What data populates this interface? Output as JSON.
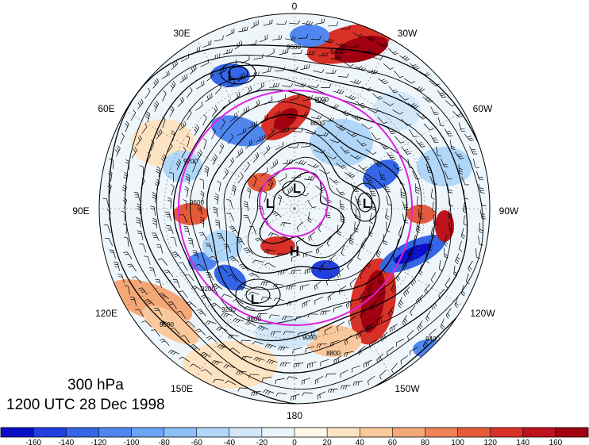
{
  "caption": {
    "level": "300 hPa",
    "time": "1200 UTC 28 Dec 1998"
  },
  "longitude_labels": [
    "0",
    "30W",
    "60W",
    "90W",
    "120W",
    "150W",
    "180",
    "150E",
    "120E",
    "90E",
    "60E",
    "30E"
  ],
  "pressure_centers": [
    "L",
    "L",
    "L",
    "L",
    "L",
    "H"
  ],
  "contour_labels": [
    "9600",
    "9400",
    "9000",
    "8600",
    "9200",
    "9600",
    "9200",
    "8800",
    "9000",
    "8800",
    "9600",
    "9200",
    "9400"
  ],
  "colorbar": {
    "ticks": [
      "-160",
      "-140",
      "-120",
      "-100",
      "-80",
      "-60",
      "-40",
      "-20",
      "0",
      "20",
      "40",
      "60",
      "80",
      "100",
      "120",
      "140",
      "160"
    ],
    "colors": [
      "#0a10c8",
      "#1f3fe0",
      "#3566e8",
      "#4f86f0",
      "#6aa5f5",
      "#8cc0f7",
      "#b0d6f8",
      "#d2e8f8",
      "#eaf4fb",
      "#fff8e6",
      "#fde3c2",
      "#f9c89c",
      "#f4a877",
      "#ee8356",
      "#e65a3a",
      "#d93127",
      "#c0121c",
      "#a00010"
    ]
  },
  "map": {
    "contour_color": "#000000",
    "circle_color": "#e020e0",
    "graticule_color": "#666666"
  }
}
